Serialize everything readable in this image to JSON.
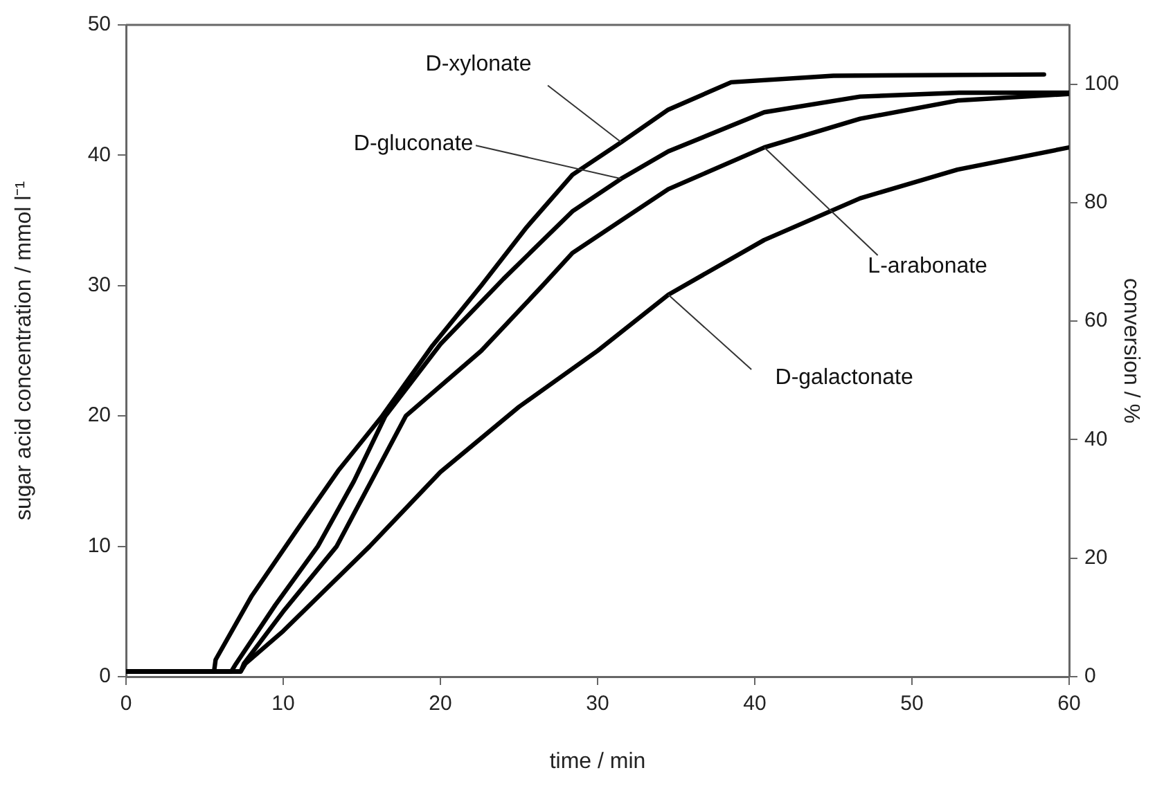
{
  "chart_data": {
    "type": "line",
    "xlabel": "time / min",
    "ylabel": "sugar acid concentration / mmol l⁻¹",
    "y2label": "conversion / %",
    "xlim": [
      0,
      60
    ],
    "xticks": [
      0,
      10,
      20,
      30,
      40,
      50,
      60
    ],
    "ylim": [
      0,
      50
    ],
    "yticks": [
      0,
      10,
      20,
      30,
      40,
      50
    ],
    "y2lim": [
      0,
      110
    ],
    "y2ticks": [
      0,
      20,
      40,
      60,
      80,
      100
    ],
    "grid": false,
    "legend": false,
    "marker": "none",
    "line_style": "solid",
    "series": [
      {
        "color": "#000000",
        "x": [
          0,
          5.6,
          5.7,
          8,
          10.9,
          13.5,
          16.3,
          19.5,
          22.6,
          25.5,
          28.4,
          31.5,
          34.5,
          38.5,
          45,
          58.4
        ],
        "values": [
          0.4,
          0.4,
          1.3,
          6.2,
          11.3,
          15.8,
          20,
          25.4,
          30,
          34.5,
          38.5,
          41,
          43.5,
          45.6,
          46.1,
          46.2
        ]
      },
      {
        "color": "#000000",
        "x": [
          0,
          6.7,
          7,
          9.5,
          12.2,
          14.5,
          16.5,
          20,
          24,
          28.4,
          31.5,
          34.5,
          40.6,
          46.7,
          53,
          60
        ],
        "values": [
          0.4,
          0.4,
          1,
          5.5,
          10,
          15,
          20,
          25.5,
          30.5,
          35.7,
          38.2,
          40.3,
          43.3,
          44.5,
          44.8,
          44.8
        ]
      },
      {
        "color": "#000000",
        "x": [
          0,
          7.3,
          7.5,
          10,
          13.4,
          15.6,
          17.8,
          22.6,
          26.5,
          28.4,
          31.5,
          34.5,
          40.6,
          46.7,
          52.9,
          60
        ],
        "values": [
          0.4,
          0.4,
          1,
          5,
          10,
          15,
          20,
          25,
          30,
          32.5,
          35,
          37.4,
          40.6,
          42.8,
          44.2,
          44.7
        ]
      },
      {
        "color": "#000000",
        "x": [
          0,
          7.3,
          7.6,
          10,
          15.5,
          20,
          25,
          30,
          34.5,
          40.6,
          46.7,
          52.9,
          60
        ],
        "values": [
          0.4,
          0.4,
          1,
          3.5,
          10,
          15.7,
          20.7,
          25,
          29.3,
          33.5,
          36.7,
          38.9,
          40.6
        ]
      }
    ],
    "annotations": [
      {
        "text": "D-xylonate",
        "x": 31.5,
        "y": 41
      },
      {
        "text": "D-gluconate",
        "x": 31.5,
        "y": 38.2
      },
      {
        "text": "L-arabonate",
        "x": 40.6,
        "y": 40.6
      },
      {
        "text": "D-galactonate",
        "x": 34.5,
        "y": 29.3
      }
    ]
  }
}
